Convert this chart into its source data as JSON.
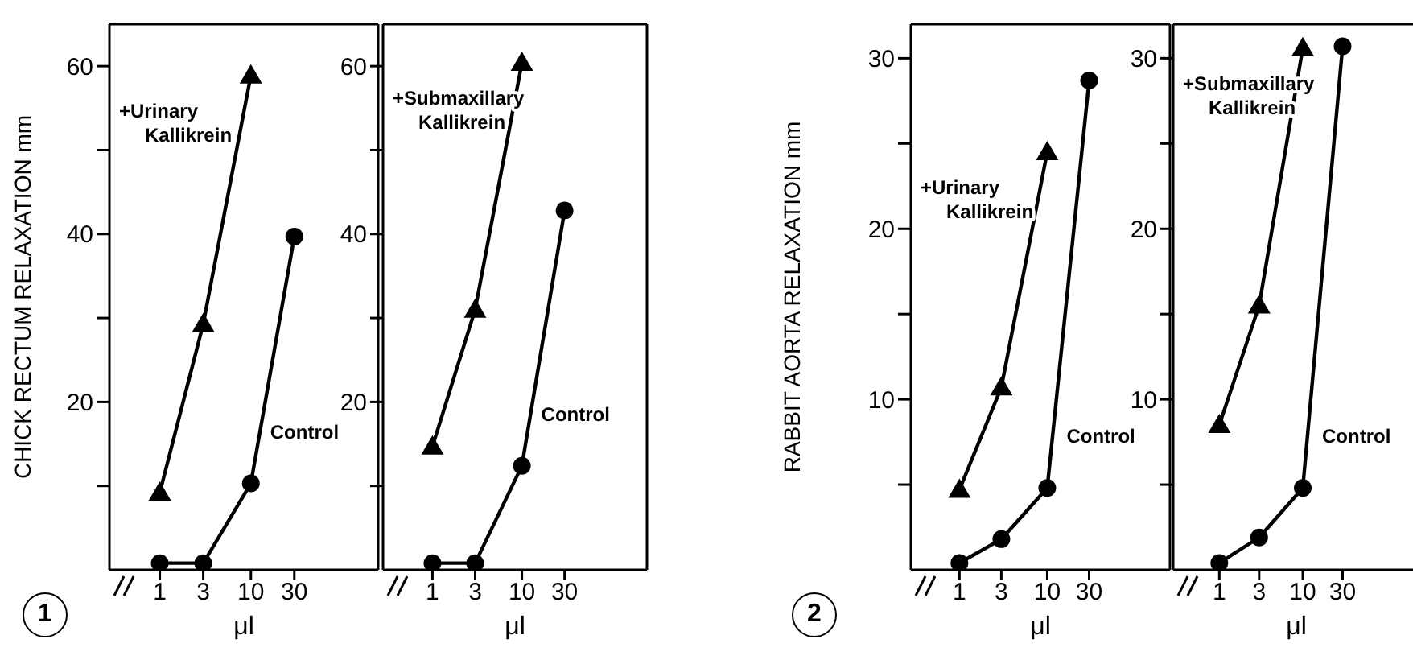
{
  "chart_data": [
    {
      "type": "line",
      "ylabel": "CHICK RECTUM RELAXATION mm",
      "xlabel": "μl",
      "log": "x",
      "xlim": [
        0.28,
        250
      ],
      "xticks": [
        1,
        3,
        10,
        30
      ],
      "ylim": [
        0,
        65
      ],
      "yticks": [
        {
          "value": 10,
          "label": null
        },
        20,
        {
          "value": 30,
          "label": null
        },
        40,
        {
          "value": 50,
          "label": null
        },
        60
      ],
      "line_style": "solid",
      "annotations": [
        "1"
      ],
      "series": [
        {
          "name": "+Urinary Kallikrein",
          "color": "#000000",
          "marker": "triangle",
          "x": [
            1,
            3,
            10
          ],
          "values": [
            9.2,
            29.3,
            58.9
          ]
        },
        {
          "name": "Control",
          "color": "#000000",
          "marker": "circle",
          "x": [
            1,
            3,
            10,
            30
          ],
          "values": [
            0.8,
            0.8,
            10.3,
            39.7
          ]
        }
      ]
    },
    {
      "type": "line",
      "xlabel": "μl",
      "log": "x",
      "xlim": [
        0.28,
        250
      ],
      "xticks": [
        1,
        3,
        10,
        30
      ],
      "ylim": [
        0,
        65
      ],
      "yticks": [
        {
          "value": 10,
          "label": null
        },
        20,
        {
          "value": 30,
          "label": null
        },
        40,
        {
          "value": 50,
          "label": null
        },
        60
      ],
      "line_style": "solid",
      "series": [
        {
          "name": "+Submaxillary Kallikrein",
          "color": "#000000",
          "marker": "triangle",
          "x": [
            1,
            3,
            10
          ],
          "values": [
            14.7,
            31,
            60.4
          ]
        },
        {
          "name": "Control",
          "color": "#000000",
          "marker": "circle",
          "x": [
            1,
            3,
            10,
            30
          ],
          "values": [
            0.8,
            0.8,
            12.4,
            42.8
          ]
        }
      ]
    },
    {
      "type": "line",
      "ylabel": "RABBIT AORTA RELAXATION mm",
      "xlabel": "μl",
      "log": "x",
      "xlim": [
        0.28,
        250
      ],
      "xticks": [
        1,
        3,
        10,
        30
      ],
      "ylim": [
        0,
        32
      ],
      "yticks": [
        {
          "value": 5,
          "label": null
        },
        10,
        {
          "value": 15,
          "label": null
        },
        20,
        {
          "value": 25,
          "label": null
        },
        30
      ],
      "line_style": "solid",
      "annotations": [
        "2"
      ],
      "series": [
        {
          "name": "+Urinary Kallikrein",
          "color": "#000000",
          "marker": "triangle",
          "x": [
            1,
            3,
            10
          ],
          "values": [
            4.7,
            10.7,
            24.5
          ]
        },
        {
          "name": "Control",
          "color": "#000000",
          "marker": "circle",
          "x": [
            1,
            3,
            10,
            30
          ],
          "values": [
            0.4,
            1.8,
            4.8,
            28.7
          ]
        }
      ]
    },
    {
      "type": "line",
      "xlabel": "μl",
      "log": "x",
      "xlim": [
        0.28,
        250
      ],
      "xticks": [
        1,
        3,
        10,
        30
      ],
      "ylim": [
        0,
        32
      ],
      "yticks": [
        {
          "value": 5,
          "label": null
        },
        10,
        {
          "value": 15,
          "label": null
        },
        20,
        {
          "value": 25,
          "label": null
        },
        30
      ],
      "line_style": "solid",
      "series": [
        {
          "name": "+Submaxillary Kallikrein",
          "color": "#000000",
          "marker": "triangle",
          "x": [
            1,
            3,
            10
          ],
          "values": [
            8.5,
            15.5,
            30.6
          ]
        },
        {
          "name": "Control",
          "color": "#000000",
          "marker": "circle",
          "x": [
            1,
            3,
            10,
            30
          ],
          "values": [
            0.4,
            1.9,
            4.8,
            30.7
          ]
        }
      ]
    }
  ]
}
